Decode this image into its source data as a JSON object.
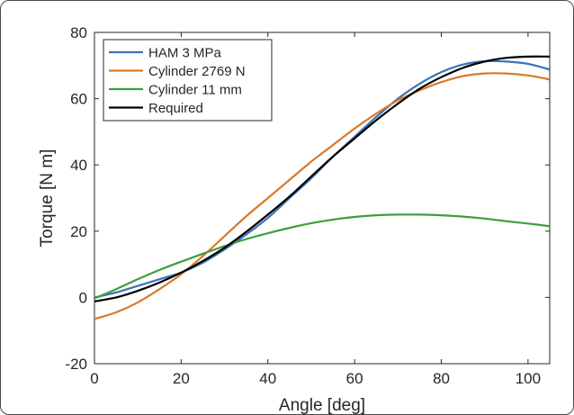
{
  "chart_data": {
    "type": "line",
    "xlabel": "Angle [deg]",
    "ylabel": "Torque [N m]",
    "xlim": [
      0,
      105
    ],
    "ylim": [
      -20,
      80
    ],
    "xticks": [
      0,
      20,
      40,
      60,
      80,
      100
    ],
    "yticks": [
      -20,
      0,
      20,
      40,
      60,
      80
    ],
    "grid": false,
    "legend_position": "top-left",
    "series": [
      {
        "name": "HAM 3 MPa",
        "color": "#3a73b8",
        "x": [
          0,
          5,
          10,
          15,
          20,
          25,
          30,
          35,
          40,
          45,
          50,
          55,
          60,
          65,
          70,
          75,
          80,
          85,
          90,
          95,
          100,
          105
        ],
        "y": [
          0,
          1.5,
          3.5,
          5.5,
          7.5,
          10.5,
          14.5,
          19,
          24,
          30,
          36,
          42.5,
          48.5,
          54.5,
          60,
          64.5,
          68,
          70.3,
          71.3,
          71.2,
          70.5,
          68.8
        ]
      },
      {
        "name": "Cylinder 2769 N",
        "color": "#d97a2b",
        "x": [
          0,
          5,
          10,
          15,
          20,
          25,
          30,
          35,
          40,
          45,
          50,
          55,
          60,
          65,
          70,
          75,
          80,
          85,
          90,
          95,
          100,
          105
        ],
        "y": [
          -6.5,
          -4.5,
          -1.5,
          2.5,
          7,
          12.5,
          18.5,
          24.5,
          30,
          35.5,
          41,
          46,
          51,
          55.5,
          59.5,
          62.5,
          65,
          66.8,
          67.6,
          67.6,
          67,
          65.8
        ]
      },
      {
        "name": "Cylinder 11 mm",
        "color": "#3f9d3f",
        "x": [
          0,
          5,
          10,
          15,
          20,
          25,
          30,
          35,
          40,
          45,
          50,
          55,
          60,
          65,
          70,
          75,
          80,
          85,
          90,
          95,
          100,
          105
        ],
        "y": [
          -0.3,
          2.5,
          5.5,
          8.3,
          10.8,
          13.2,
          15.5,
          17.6,
          19.4,
          21,
          22.4,
          23.5,
          24.3,
          24.8,
          25,
          25,
          24.8,
          24.4,
          23.8,
          23,
          22.3,
          21.5
        ]
      },
      {
        "name": "Required",
        "color": "#000000",
        "x": [
          0,
          5,
          10,
          15,
          20,
          25,
          30,
          35,
          40,
          45,
          50,
          55,
          60,
          65,
          70,
          75,
          80,
          85,
          90,
          95,
          100,
          105
        ],
        "y": [
          -1.2,
          0,
          2,
          4.5,
          7.5,
          11,
          15,
          19.8,
          25,
          30.5,
          36.5,
          42.5,
          48,
          53.5,
          58.5,
          63,
          66.5,
          69.3,
          71.2,
          72.3,
          72.7,
          72.7
        ]
      }
    ]
  }
}
